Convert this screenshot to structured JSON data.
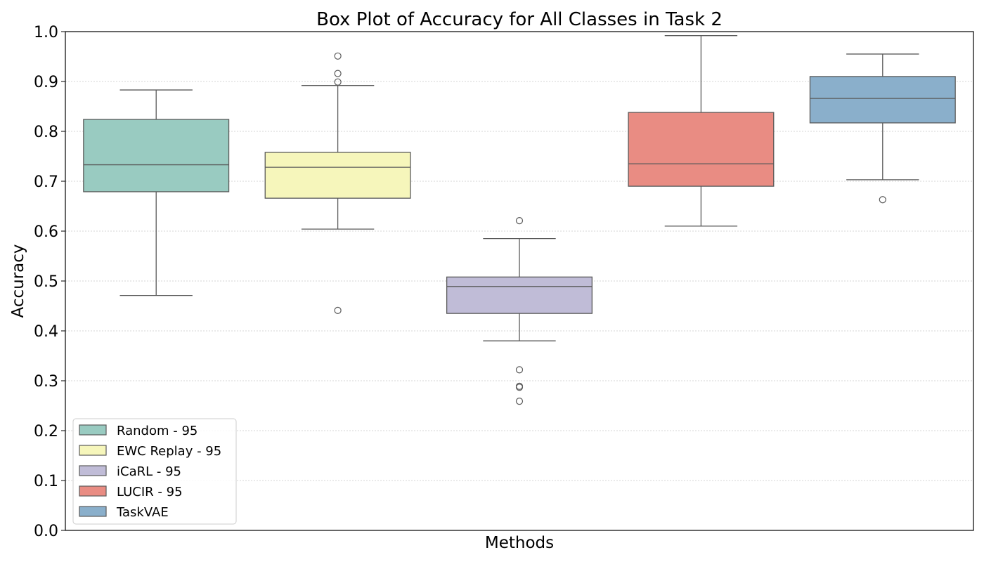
{
  "chart_data": {
    "type": "box",
    "title": "Box Plot of Accuracy for All Classes in Task 2",
    "xlabel": "Methods",
    "ylabel": "Accuracy",
    "ylim": [
      0.0,
      1.0
    ],
    "yticks": [
      "0.0",
      "0.1",
      "0.2",
      "0.3",
      "0.4",
      "0.5",
      "0.6",
      "0.7",
      "0.8",
      "0.9",
      "1.0"
    ],
    "grid": "horizontal dotted",
    "legend_position": "lower-left",
    "series": [
      {
        "name": "Random - 95",
        "color": "#99cbc1",
        "whisker_low": 0.471,
        "q1": 0.679,
        "median": 0.733,
        "q3": 0.824,
        "whisker_high": 0.883,
        "outliers": []
      },
      {
        "name": "EWC Replay - 95",
        "color": "#f6f6bb",
        "whisker_low": 0.604,
        "q1": 0.666,
        "median": 0.728,
        "q3": 0.758,
        "whisker_high": 0.892,
        "outliers": [
          0.441,
          0.899,
          0.916,
          0.951
        ]
      },
      {
        "name": "iCaRL - 95",
        "color": "#c0bcd7",
        "whisker_low": 0.38,
        "q1": 0.435,
        "median": 0.489,
        "q3": 0.508,
        "whisker_high": 0.585,
        "outliers": [
          0.621,
          0.322,
          0.289,
          0.287,
          0.259
        ]
      },
      {
        "name": "LUCIR - 95",
        "color": "#e98c83",
        "whisker_low": 0.61,
        "q1": 0.69,
        "median": 0.735,
        "q3": 0.838,
        "whisker_high": 0.992,
        "outliers": []
      },
      {
        "name": "TaskVAE",
        "color": "#8aafcb",
        "whisker_low": 0.703,
        "q1": 0.817,
        "median": 0.866,
        "q3": 0.91,
        "whisker_high": 0.955,
        "outliers": [
          0.663
        ]
      }
    ]
  }
}
